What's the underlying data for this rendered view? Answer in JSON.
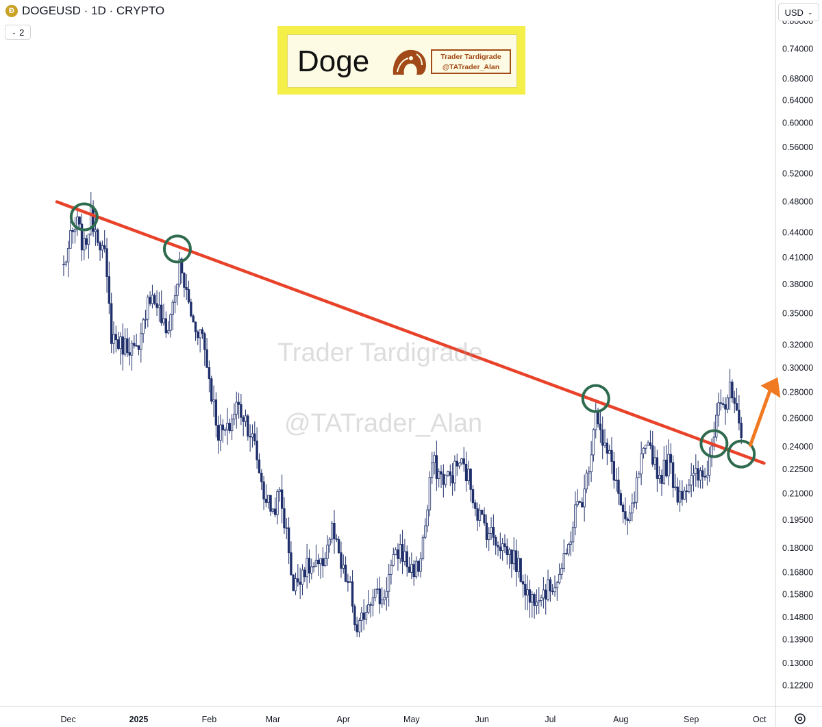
{
  "header": {
    "symbol_title": "DOGEUSD · 1D · CRYPTO",
    "coin_icon": "doge-coin-icon",
    "indicator_count": "2",
    "currency": "USD"
  },
  "logo": {
    "title": "Doge",
    "line1": "Trader Tardigrade",
    "line2": "@TATrader_Alan",
    "icon": "tardigrade-logo-icon"
  },
  "watermarks": [
    "Trader Tardigrade",
    "@TATrader_Alan"
  ],
  "colors": {
    "trendline": "#e8432a",
    "candles": "#1f2f6b",
    "circles": "#2f6b4f",
    "arrow": "#f07a22",
    "logo_bg": "#f5ef4a"
  },
  "chart_data": {
    "type": "candlestick",
    "title": "DOGEUSD · 1D · CRYPTO",
    "scale": "log",
    "y_tick_labels": [
      "0.80000",
      "0.74000",
      "0.68000",
      "0.64000",
      "0.60000",
      "0.56000",
      "0.52000",
      "0.48000",
      "0.44000",
      "0.41000",
      "0.38000",
      "0.35000",
      "0.32000",
      "0.30000",
      "0.28000",
      "0.26000",
      "0.24000",
      "0.22500",
      "0.21000",
      "0.19500",
      "0.18000",
      "0.16800",
      "0.15800",
      "0.14800",
      "0.13900",
      "0.13000",
      "0.12200"
    ],
    "x_tick_labels": [
      "Dec",
      "2025",
      "Feb",
      "Mar",
      "Apr",
      "May",
      "Jun",
      "Jul",
      "Aug",
      "Sep",
      "Oct"
    ],
    "ylim": [
      0.115,
      0.85
    ],
    "close_path": [
      [
        "2024-11-29",
        0.4
      ],
      [
        "2024-12-02",
        0.43
      ],
      [
        "2024-12-05",
        0.45
      ],
      [
        "2024-12-08",
        0.42
      ],
      [
        "2024-12-11",
        0.46
      ],
      [
        "2024-12-14",
        0.44
      ],
      [
        "2024-12-17",
        0.41
      ],
      [
        "2024-12-20",
        0.33
      ],
      [
        "2024-12-24",
        0.32
      ],
      [
        "2024-12-28",
        0.32
      ],
      [
        "2025-01-01",
        0.31
      ],
      [
        "2025-01-05",
        0.37
      ],
      [
        "2025-01-09",
        0.36
      ],
      [
        "2025-01-13",
        0.33
      ],
      [
        "2025-01-17",
        0.37
      ],
      [
        "2025-01-19",
        0.4
      ],
      [
        "2025-01-21",
        0.38
      ],
      [
        "2025-01-25",
        0.34
      ],
      [
        "2025-01-29",
        0.33
      ],
      [
        "2025-02-02",
        0.28
      ],
      [
        "2025-02-05",
        0.25
      ],
      [
        "2025-02-09",
        0.25
      ],
      [
        "2025-02-13",
        0.27
      ],
      [
        "2025-02-17",
        0.26
      ],
      [
        "2025-02-21",
        0.24
      ],
      [
        "2025-02-25",
        0.21
      ],
      [
        "2025-03-01",
        0.2
      ],
      [
        "2025-03-04",
        0.21
      ],
      [
        "2025-03-08",
        0.18
      ],
      [
        "2025-03-10",
        0.16
      ],
      [
        "2025-03-14",
        0.17
      ],
      [
        "2025-03-18",
        0.17
      ],
      [
        "2025-03-22",
        0.17
      ],
      [
        "2025-03-27",
        0.19
      ],
      [
        "2025-03-31",
        0.17
      ],
      [
        "2025-04-04",
        0.16
      ],
      [
        "2025-04-07",
        0.14
      ],
      [
        "2025-04-10",
        0.15
      ],
      [
        "2025-04-14",
        0.16
      ],
      [
        "2025-04-18",
        0.155
      ],
      [
        "2025-04-22",
        0.17
      ],
      [
        "2025-04-26",
        0.18
      ],
      [
        "2025-04-30",
        0.17
      ],
      [
        "2025-05-04",
        0.17
      ],
      [
        "2025-05-08",
        0.2
      ],
      [
        "2025-05-10",
        0.23
      ],
      [
        "2025-05-14",
        0.22
      ],
      [
        "2025-05-18",
        0.22
      ],
      [
        "2025-05-22",
        0.23
      ],
      [
        "2025-05-26",
        0.22
      ],
      [
        "2025-05-30",
        0.2
      ],
      [
        "2025-06-03",
        0.19
      ],
      [
        "2025-06-07",
        0.185
      ],
      [
        "2025-06-11",
        0.18
      ],
      [
        "2025-06-15",
        0.175
      ],
      [
        "2025-06-19",
        0.165
      ],
      [
        "2025-06-22",
        0.155
      ],
      [
        "2025-06-26",
        0.16
      ],
      [
        "2025-06-30",
        0.16
      ],
      [
        "2025-07-04",
        0.165
      ],
      [
        "2025-07-08",
        0.175
      ],
      [
        "2025-07-12",
        0.2
      ],
      [
        "2025-07-16",
        0.21
      ],
      [
        "2025-07-19",
        0.24
      ],
      [
        "2025-07-21",
        0.27
      ],
      [
        "2025-07-24",
        0.24
      ],
      [
        "2025-07-28",
        0.23
      ],
      [
        "2025-07-31",
        0.21
      ],
      [
        "2025-08-03",
        0.19
      ],
      [
        "2025-08-06",
        0.2
      ],
      [
        "2025-08-10",
        0.23
      ],
      [
        "2025-08-14",
        0.24
      ],
      [
        "2025-08-18",
        0.22
      ],
      [
        "2025-08-22",
        0.23
      ],
      [
        "2025-08-26",
        0.21
      ],
      [
        "2025-08-30",
        0.215
      ],
      [
        "2025-09-03",
        0.22
      ],
      [
        "2025-09-07",
        0.22
      ],
      [
        "2025-09-10",
        0.24
      ],
      [
        "2025-09-13",
        0.28
      ],
      [
        "2025-09-16",
        0.27
      ],
      [
        "2025-09-18",
        0.28
      ],
      [
        "2025-09-20",
        0.27
      ],
      [
        "2025-09-22",
        0.25
      ],
      [
        "2025-09-23",
        0.24
      ]
    ],
    "trendline": [
      [
        "2024-11-26",
        0.48
      ],
      [
        "2025-10-03",
        0.229
      ]
    ],
    "touch_points": [
      [
        "2024-12-08",
        0.46
      ],
      [
        "2025-01-18",
        0.42
      ],
      [
        "2025-07-21",
        0.275
      ],
      [
        "2025-09-11",
        0.242
      ],
      [
        "2025-09-23",
        0.235
      ]
    ],
    "annotation": "breakout arrow up"
  }
}
